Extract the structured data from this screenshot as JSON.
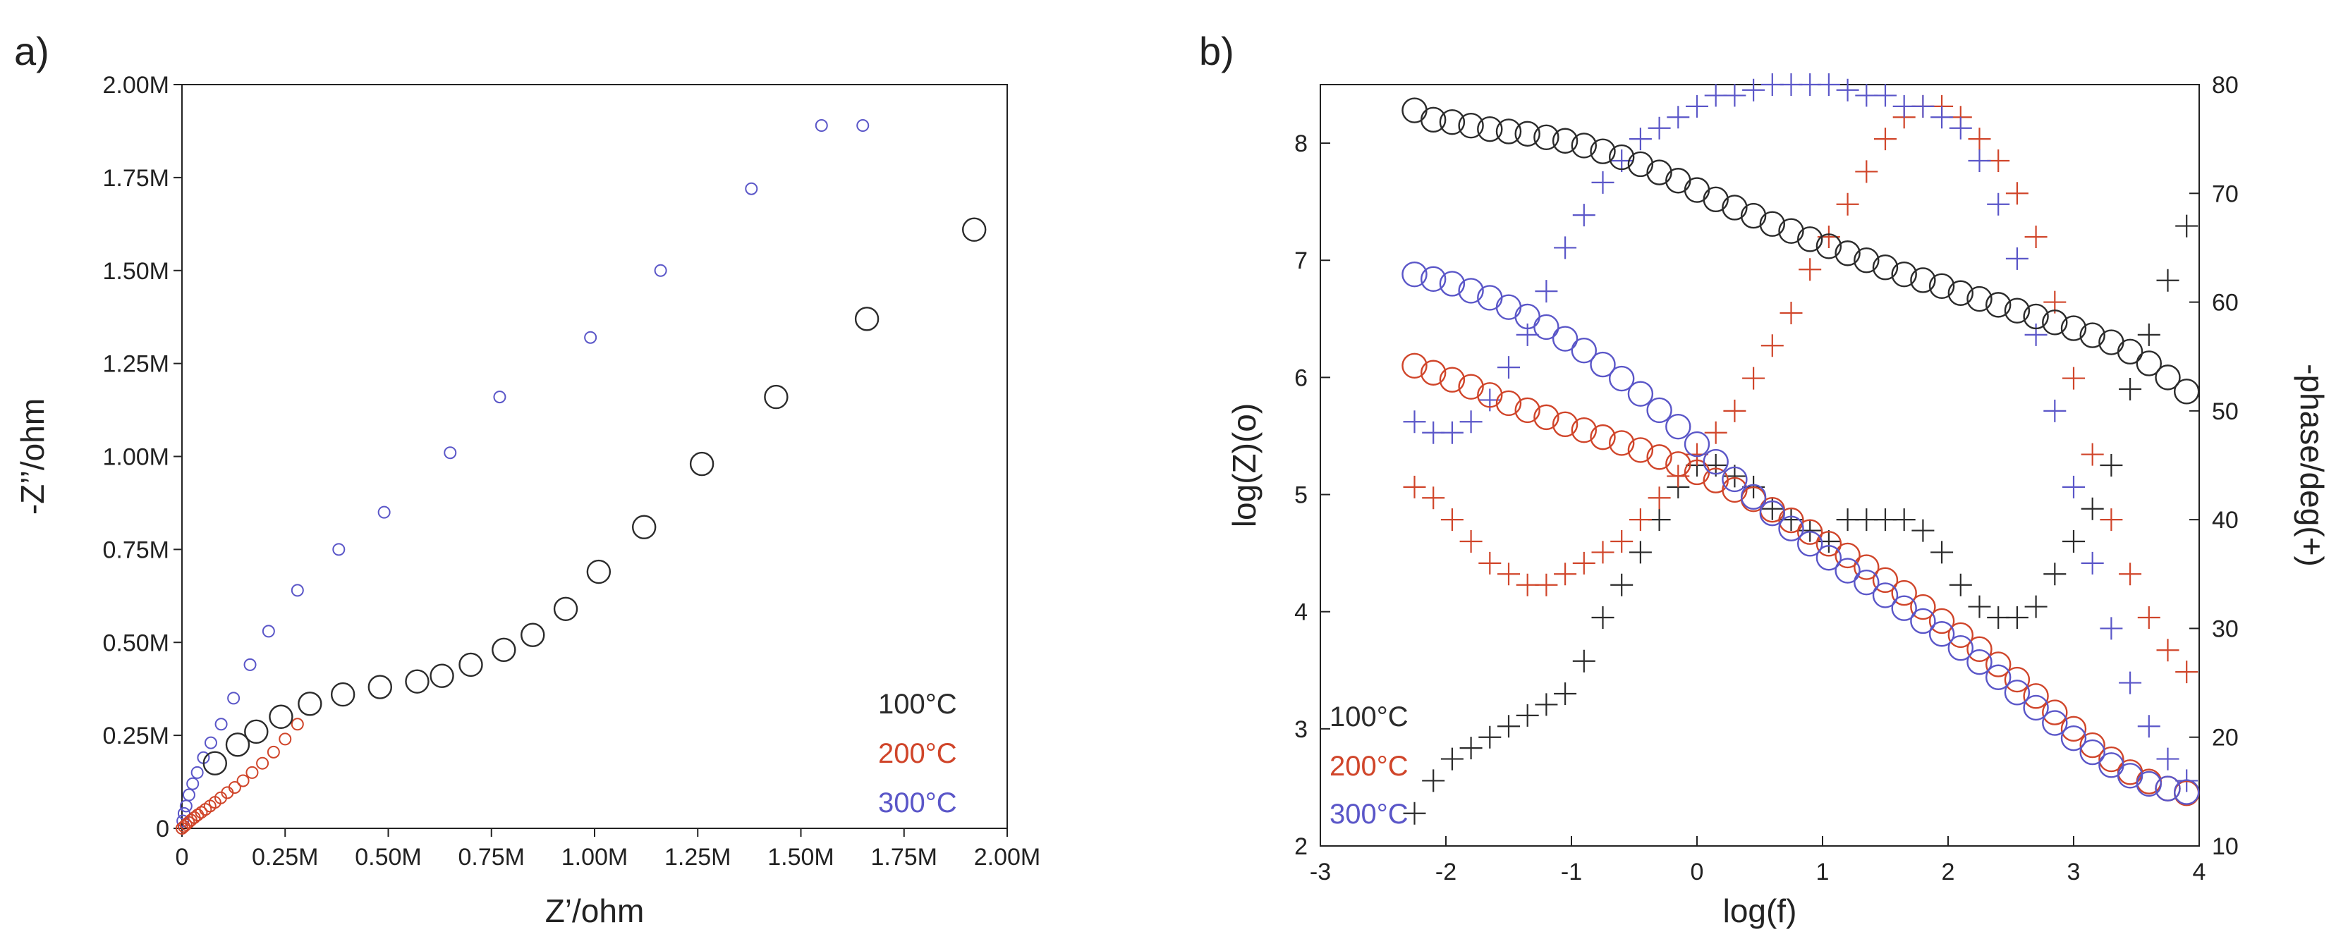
{
  "colors": {
    "t100": "#2b2b2b",
    "t200": "#d0452a",
    "t300": "#5a56c8",
    "axis": "#222222"
  },
  "chart_data": [
    {
      "panel_label": "a)",
      "type": "scatter",
      "xlabel": "Z’/ohm",
      "ylabel": "-Z’’/ohm",
      "xlim": [
        0,
        2.0
      ],
      "ylim": [
        0,
        2.0
      ],
      "x_ticks": [
        "0",
        "0.25M",
        "0.50M",
        "0.75M",
        "1.00M",
        "1.25M",
        "1.50M",
        "1.75M",
        "2.00M"
      ],
      "y_ticks": [
        "0",
        "0.25M",
        "0.50M",
        "0.75M",
        "1.00M",
        "1.25M",
        "1.50M",
        "1.75M",
        "2.00M"
      ],
      "units": "M ohm",
      "legend": [
        "100°C",
        "200°C",
        "300°C"
      ],
      "series": [
        {
          "name": "300°C",
          "marker": "small-circle",
          "x": [
            0.002,
            0.005,
            0.01,
            0.017,
            0.026,
            0.037,
            0.052,
            0.07,
            0.095,
            0.125,
            0.165,
            0.21,
            0.28,
            0.38,
            0.49,
            0.65,
            0.77,
            0.99,
            1.16,
            1.38,
            1.55,
            1.65
          ],
          "y": [
            0.02,
            0.04,
            0.06,
            0.09,
            0.12,
            0.15,
            0.19,
            0.23,
            0.28,
            0.35,
            0.44,
            0.53,
            0.64,
            0.75,
            0.85,
            1.01,
            1.16,
            1.32,
            1.5,
            1.72,
            1.89,
            1.89
          ]
        },
        {
          "name": "200°C",
          "marker": "small-circle",
          "x": [
            0.0,
            0.005,
            0.01,
            0.016,
            0.022,
            0.03,
            0.038,
            0.047,
            0.057,
            0.068,
            0.08,
            0.094,
            0.11,
            0.128,
            0.148,
            0.17,
            0.195,
            0.222,
            0.25,
            0.28
          ],
          "y": [
            0.0,
            0.005,
            0.01,
            0.016,
            0.022,
            0.029,
            0.036,
            0.043,
            0.051,
            0.06,
            0.07,
            0.082,
            0.096,
            0.11,
            0.128,
            0.15,
            0.175,
            0.205,
            0.24,
            0.28
          ]
        },
        {
          "name": "100°C",
          "marker": "large-circle",
          "x": [
            0.08,
            0.135,
            0.18,
            0.24,
            0.31,
            0.39,
            0.48,
            0.57,
            0.63,
            0.7,
            0.78,
            0.85,
            0.93,
            1.01,
            1.12,
            1.26,
            1.44,
            1.66,
            1.92
          ],
          "y": [
            0.175,
            0.225,
            0.26,
            0.3,
            0.335,
            0.36,
            0.38,
            0.395,
            0.41,
            0.44,
            0.48,
            0.52,
            0.59,
            0.69,
            0.81,
            0.98,
            1.16,
            1.37,
            1.61
          ]
        }
      ]
    },
    {
      "panel_label": "b)",
      "type": "scatter",
      "xlabel": "log(f)",
      "ylabel": "log(Z)(o)",
      "y2label": "-phase/deg(+)",
      "xlim": [
        -3,
        4
      ],
      "ylim": [
        2,
        8.5
      ],
      "y2lim": [
        10,
        80
      ],
      "x_ticks": [
        "-3",
        "-2",
        "-1",
        "0",
        "1",
        "2",
        "3",
        "4"
      ],
      "y_ticks": [
        "2",
        "3",
        "4",
        "5",
        "6",
        "7",
        "8"
      ],
      "y2_ticks": [
        "10",
        "20",
        "30",
        "40",
        "50",
        "60",
        "70",
        "80"
      ],
      "legend": [
        "100°C",
        "200°C",
        "300°C"
      ],
      "logf": [
        -2.25,
        -2.1,
        -1.95,
        -1.8,
        -1.65,
        -1.5,
        -1.35,
        -1.2,
        -1.05,
        -0.9,
        -0.75,
        -0.6,
        -0.45,
        -0.3,
        -0.15,
        0,
        0.15,
        0.3,
        0.45,
        0.6,
        0.75,
        0.9,
        1.05,
        1.2,
        1.35,
        1.5,
        1.65,
        1.8,
        1.95,
        2.1,
        2.25,
        2.4,
        2.55,
        2.7,
        2.85,
        3,
        3.15,
        3.3,
        3.45,
        3.6,
        3.75,
        3.9
      ],
      "impedance_series": [
        {
          "name": "100°C",
          "marker": "circle",
          "values": [
            8.28,
            8.2,
            8.18,
            8.15,
            8.12,
            8.1,
            8.08,
            8.05,
            8.02,
            7.98,
            7.93,
            7.88,
            7.82,
            7.75,
            7.68,
            7.6,
            7.52,
            7.45,
            7.38,
            7.31,
            7.25,
            7.18,
            7.12,
            7.06,
            7.0,
            6.94,
            6.88,
            6.83,
            6.78,
            6.72,
            6.67,
            6.62,
            6.57,
            6.52,
            6.47,
            6.42,
            6.36,
            6.3,
            6.22,
            6.12,
            6.0,
            5.88
          ]
        },
        {
          "name": "200°C",
          "marker": "circle",
          "values": [
            6.1,
            6.04,
            5.98,
            5.92,
            5.85,
            5.78,
            5.72,
            5.66,
            5.6,
            5.55,
            5.49,
            5.44,
            5.38,
            5.32,
            5.26,
            5.19,
            5.12,
            5.04,
            4.96,
            4.87,
            4.78,
            4.68,
            4.58,
            4.48,
            4.38,
            4.27,
            4.16,
            4.04,
            3.92,
            3.8,
            3.68,
            3.55,
            3.42,
            3.28,
            3.14,
            3.0,
            2.86,
            2.74,
            2.63,
            2.55,
            2.49,
            2.45
          ]
        },
        {
          "name": "300°C",
          "marker": "circle",
          "values": [
            6.88,
            6.84,
            6.8,
            6.74,
            6.68,
            6.6,
            6.52,
            6.43,
            6.33,
            6.23,
            6.11,
            5.99,
            5.86,
            5.72,
            5.58,
            5.43,
            5.28,
            5.13,
            4.98,
            4.84,
            4.71,
            4.58,
            4.46,
            4.35,
            4.25,
            4.14,
            4.03,
            3.92,
            3.81,
            3.69,
            3.57,
            3.44,
            3.31,
            3.18,
            3.05,
            2.92,
            2.8,
            2.69,
            2.6,
            2.53,
            2.49,
            2.46
          ]
        }
      ],
      "phase_series": [
        {
          "name": "100°C",
          "marker": "cross",
          "values": [
            13,
            16,
            18,
            19,
            20,
            21,
            22,
            23,
            24,
            27,
            31,
            34,
            37,
            40,
            43,
            45,
            45,
            44,
            43,
            41,
            40,
            39,
            38,
            40,
            40,
            40,
            40,
            39,
            37,
            34,
            32,
            31,
            31,
            32,
            35,
            38,
            41,
            45,
            52,
            57,
            62,
            67
          ]
        },
        {
          "name": "200°C",
          "marker": "cross",
          "values": [
            43,
            42,
            40,
            38,
            36,
            35,
            34,
            34,
            35,
            36,
            37,
            38,
            40,
            42,
            44,
            46,
            48,
            50,
            53,
            56,
            59,
            63,
            66,
            69,
            72,
            75,
            77,
            78,
            78,
            77,
            75,
            73,
            70,
            66,
            60,
            53,
            46,
            40,
            35,
            31,
            28,
            26
          ]
        },
        {
          "name": "300°C",
          "marker": "cross",
          "values": [
            49,
            48,
            48,
            49,
            51,
            54,
            57,
            61,
            65,
            68,
            71,
            73,
            75,
            76,
            77,
            78,
            79,
            79,
            79.5,
            80,
            80,
            80,
            80,
            79.5,
            79,
            79,
            78,
            78,
            77,
            76,
            73,
            69,
            64,
            57,
            50,
            43,
            36,
            30,
            25,
            21,
            18,
            16
          ]
        }
      ]
    }
  ]
}
